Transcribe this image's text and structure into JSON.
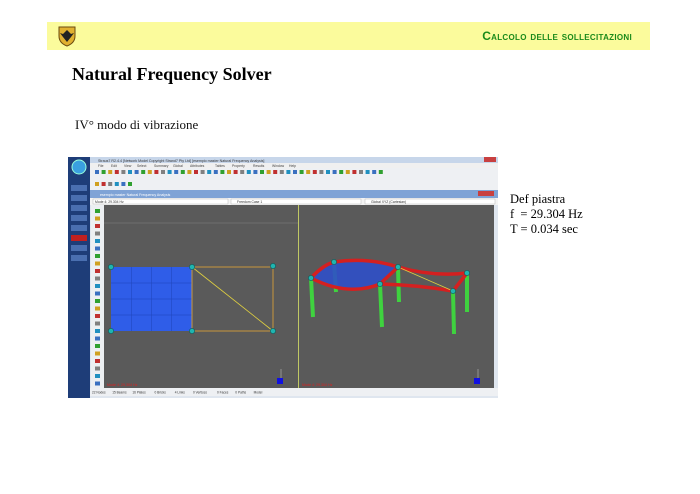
{
  "header": {
    "section_title": "Calcolo delle sollecitazioni",
    "logo_icon": "coat-of-arms-eagle-icon",
    "banner_color": "#fbfb9c",
    "title_color": "#1a8a1a"
  },
  "slide": {
    "title": "Natural Frequency Solver",
    "subtitle": "IV° modo di vibrazione"
  },
  "info": {
    "line1": "Def piastra",
    "line2": "f  = 29.304 Hz",
    "line3": "T = 0.034 sec"
  },
  "app": {
    "window_title": "Straus7 R2.4.4 [Network Model Copyright Strand7 Pty Ltd] [esempio master Natural Frequency Analysis]",
    "menu": [
      "File",
      "Edit",
      "View",
      "Select",
      "Summary",
      "Global",
      "Attributes",
      "Tables",
      "Property",
      "Results",
      "Window",
      "Help"
    ],
    "child_title": "esempio master Natural Frequency Analysis",
    "mode_select": "Mode 4: 29.304 Hz",
    "freedom_select": "Freedom Case 1",
    "coord_select": "Global XYZ (Cartesian)",
    "left_view_label": "Mode 4: 29.304 Hz",
    "right_view_label": "Mode 4: 29.304 Hz",
    "status": [
      "22 Nodes",
      "15 Beams",
      "16 Plates",
      "0 Bricks",
      "4 Links",
      "0 Vertices",
      "0 Faces",
      "0 Paths",
      "Model"
    ],
    "colors": {
      "viewport": "#5a5a5a",
      "plate": "#2f5de8",
      "beam": "#d42020",
      "column": "#3fd23f",
      "node": "#1fb5b0"
    }
  }
}
